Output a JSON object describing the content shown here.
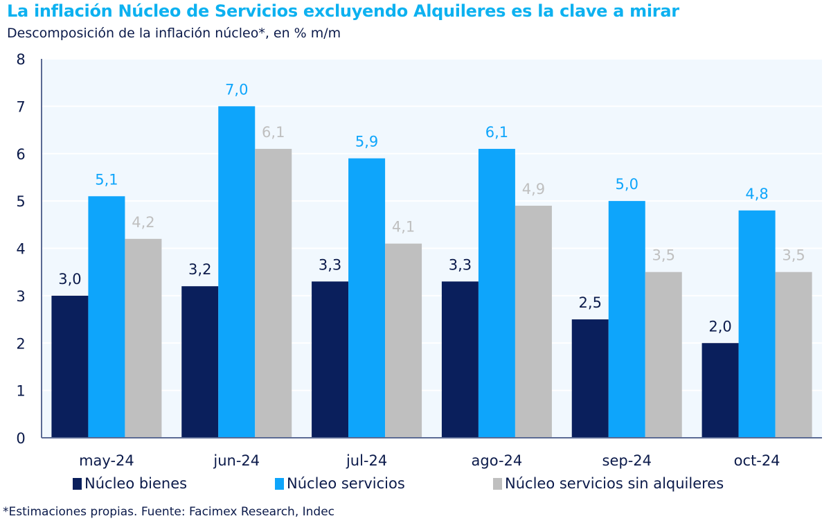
{
  "chart_data": {
    "type": "bar",
    "title": "La inflación Núcleo de Servicios excluyendo Alquileres es la clave a mirar",
    "subtitle": "Descomposición de la inflación núcleo*, en % m/m",
    "xlabel": "",
    "ylabel": "",
    "ylim": [
      0,
      8
    ],
    "yticks": [
      "0",
      "1",
      "2",
      "3",
      "4",
      "5",
      "6",
      "7",
      "8"
    ],
    "grid": true,
    "legend_position": "bottom",
    "categories": [
      "may-24",
      "jun-24",
      "jul-24",
      "ago-24",
      "sep-24",
      "oct-24"
    ],
    "series": [
      {
        "name": "Núcleo bienes",
        "color": "#0a1f5c",
        "label_color": "#0b1a4a",
        "values": [
          3.0,
          3.2,
          3.3,
          3.3,
          2.5,
          2.0
        ],
        "labels": [
          "3,0",
          "3,2",
          "3,3",
          "3,3",
          "2,5",
          "2,0"
        ]
      },
      {
        "name": "Núcleo servicios",
        "color": "#0ea5fb",
        "label_color": "#0ea5fb",
        "values": [
          5.1,
          7.0,
          5.9,
          6.1,
          5.0,
          4.8
        ],
        "labels": [
          "5,1",
          "7,0",
          "5,9",
          "6,1",
          "5,0",
          "4,8"
        ]
      },
      {
        "name": "Núcleo servicios sin alquileres",
        "color": "#bfbfbf",
        "label_color": "#bfbfbf",
        "values": [
          4.2,
          6.1,
          4.1,
          4.9,
          3.5,
          3.5
        ],
        "labels": [
          "4,2",
          "6,1",
          "4,1",
          "4,9",
          "3,5",
          "3,5"
        ]
      }
    ],
    "footnote": "*Estimaciones propias. Fuente: Facimex Research, Indec"
  },
  "colors": {
    "title": "#0db1f0",
    "text": "#0b1a4a",
    "plot_background": "#f1f8fe"
  }
}
